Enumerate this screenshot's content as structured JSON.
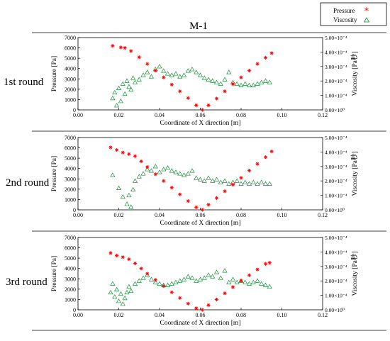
{
  "figure": {
    "title": "M-1",
    "legend": [
      {
        "label": "Pressure",
        "marker": "asterisk",
        "color": "#ff0000"
      },
      {
        "label": "Viscosity",
        "marker": "triangle-open",
        "color": "#1a8a3a"
      }
    ]
  },
  "chart_data": [
    {
      "type": "scatter",
      "row_label": "1st round",
      "xlabel": "Coordinate of X direction [m]",
      "ylabel": "Pressure [Pa]",
      "y2label": "Viscosity [Pa秒]",
      "xlim": [
        0,
        0.12
      ],
      "ylim": [
        0,
        7000
      ],
      "y2lim": [
        0,
        0.0005
      ],
      "xticks": [
        "0.00",
        "0.02",
        "0.04",
        "0.06",
        "0.08",
        "0.10",
        "0.12"
      ],
      "yticks": [
        "0",
        "1000",
        "2000",
        "3000",
        "4000",
        "5000",
        "6000",
        "7000"
      ],
      "y2ticks": [
        "0.00×10⁰",
        "1.00×10⁻⁴",
        "2.00×10⁻⁴",
        "3.00×10⁻⁴",
        "4.00×10⁻⁴",
        "5.00×10⁻⁴"
      ],
      "pressure": {
        "x": [
          0.017,
          0.021,
          0.023,
          0.026,
          0.03,
          0.034,
          0.038,
          0.042,
          0.046,
          0.05,
          0.054,
          0.058,
          0.061,
          0.064,
          0.068,
          0.072,
          0.076,
          0.08,
          0.084,
          0.088,
          0.092,
          0.095
        ],
        "y": [
          6200,
          6050,
          6000,
          5700,
          5100,
          4450,
          3800,
          3150,
          2450,
          1800,
          1150,
          450,
          0,
          450,
          1100,
          1800,
          2500,
          3150,
          3800,
          4450,
          5050,
          5500
        ]
      },
      "viscosity": {
        "x": [
          0.017,
          0.018,
          0.019,
          0.02,
          0.021,
          0.022,
          0.023,
          0.024,
          0.025,
          0.026,
          0.027,
          0.028,
          0.03,
          0.032,
          0.034,
          0.036,
          0.038,
          0.04,
          0.042,
          0.044,
          0.046,
          0.048,
          0.05,
          0.052,
          0.054,
          0.056,
          0.058,
          0.06,
          0.062,
          0.064,
          0.066,
          0.068,
          0.07,
          0.072,
          0.074,
          0.076,
          0.078,
          0.08,
          0.082,
          0.084,
          0.086,
          0.088,
          0.09,
          0.092,
          0.094
        ],
        "y": [
          8e-05,
          0.00012,
          3e-05,
          0.00015,
          6e-05,
          0.00018,
          0.00011,
          0.0002,
          0.00016,
          0.00014,
          0.00022,
          0.00019,
          0.00021,
          0.00024,
          0.00026,
          0.00023,
          0.00028,
          0.0003,
          0.00027,
          0.00025,
          0.00024,
          0.00025,
          0.00023,
          0.00024,
          0.00027,
          0.00028,
          0.00026,
          0.00024,
          0.00022,
          0.00021,
          0.0002,
          0.00019,
          0.00018,
          0.00021,
          0.00026,
          0.00019,
          0.00018,
          0.00017,
          0.00018,
          0.00017,
          0.00017,
          0.00018,
          0.00019,
          0.0002,
          0.00019
        ]
      }
    },
    {
      "type": "scatter",
      "row_label": "2nd round",
      "xlabel": "Coordinate of X direction [m]",
      "ylabel": "Pressure [Pa]",
      "y2label": "Viscosity [Pa秒]",
      "xlim": [
        0,
        0.12
      ],
      "ylim": [
        0,
        7000
      ],
      "y2lim": [
        0,
        0.0005
      ],
      "xticks": [
        "0.00",
        "0.02",
        "0.04",
        "0.06",
        "0.08",
        "0.10",
        "0.12"
      ],
      "yticks": [
        "0",
        "1000",
        "2000",
        "3000",
        "4000",
        "5000",
        "6000",
        "7000"
      ],
      "y2ticks": [
        "0.00×10⁰",
        "1.00×10⁻⁴",
        "2.00×10⁻⁴",
        "3.00×10⁻⁴",
        "4.00×10⁻⁴",
        "5.00×10⁻⁴"
      ],
      "pressure": {
        "x": [
          0.016,
          0.019,
          0.022,
          0.025,
          0.028,
          0.031,
          0.034,
          0.038,
          0.042,
          0.046,
          0.05,
          0.054,
          0.058,
          0.061,
          0.064,
          0.068,
          0.072,
          0.076,
          0.08,
          0.084,
          0.088,
          0.092,
          0.095
        ],
        "y": [
          6050,
          5800,
          5550,
          5400,
          5200,
          4700,
          4150,
          3450,
          2800,
          2150,
          1500,
          850,
          250,
          0,
          500,
          1150,
          1800,
          2450,
          3100,
          3800,
          4450,
          5100,
          5650
        ]
      },
      "viscosity": {
        "x": [
          0.017,
          0.02,
          0.022,
          0.024,
          0.025,
          0.026,
          0.027,
          0.028,
          0.03,
          0.032,
          0.034,
          0.036,
          0.038,
          0.04,
          0.042,
          0.044,
          0.046,
          0.048,
          0.05,
          0.052,
          0.054,
          0.056,
          0.058,
          0.06,
          0.062,
          0.064,
          0.066,
          0.068,
          0.07,
          0.072,
          0.074,
          0.076,
          0.078,
          0.08,
          0.082,
          0.084,
          0.086,
          0.088,
          0.09,
          0.092,
          0.094
        ],
        "y": [
          0.00024,
          0.00015,
          9e-05,
          4e-05,
          0.0001,
          2e-05,
          0.00014,
          0.0002,
          0.00023,
          0.00025,
          0.00028,
          0.00027,
          0.0003,
          0.00026,
          0.00028,
          0.00029,
          0.00027,
          0.00026,
          0.00025,
          0.00024,
          0.00025,
          0.00027,
          0.00022,
          0.00021,
          0.0002,
          0.00022,
          0.0002,
          0.00021,
          0.00019,
          0.0002,
          0.00018,
          0.00019,
          0.0002,
          0.00018,
          0.00019,
          0.00018,
          0.00019,
          0.00018,
          0.00019,
          0.00018,
          0.00018
        ]
      }
    },
    {
      "type": "scatter",
      "row_label": "3rd round",
      "xlabel": "Coordinate of X direction [m]",
      "ylabel": "Pressure [Pa]",
      "y2label": "Viscosity [Pa秒]",
      "xlim": [
        0,
        0.12
      ],
      "ylim": [
        0,
        7000
      ],
      "y2lim": [
        0,
        0.0005
      ],
      "xticks": [
        "0.00",
        "0.02",
        "0.04",
        "0.06",
        "0.08",
        "0.10",
        "0.12"
      ],
      "yticks": [
        "0",
        "1000",
        "2000",
        "3000",
        "4000",
        "5000",
        "6000",
        "7000"
      ],
      "y2ticks": [
        "0.00×10⁰",
        "1.00×10⁻⁴",
        "2.00×10⁻⁴",
        "3.00×10⁻⁴",
        "4.00×10⁻⁴",
        "5.00×10⁻⁴"
      ],
      "pressure": {
        "x": [
          0.016,
          0.019,
          0.022,
          0.025,
          0.028,
          0.031,
          0.034,
          0.038,
          0.042,
          0.046,
          0.05,
          0.054,
          0.058,
          0.061,
          0.064,
          0.068,
          0.072,
          0.076,
          0.08,
          0.084,
          0.088,
          0.092,
          0.094
        ],
        "y": [
          5500,
          5250,
          5100,
          4900,
          4500,
          4000,
          3500,
          2900,
          2300,
          1700,
          1150,
          600,
          150,
          0,
          450,
          1000,
          1600,
          2200,
          2800,
          3350,
          3900,
          4450,
          4550
        ]
      },
      "viscosity": {
        "x": [
          0.016,
          0.017,
          0.018,
          0.019,
          0.02,
          0.021,
          0.022,
          0.023,
          0.024,
          0.025,
          0.026,
          0.028,
          0.03,
          0.032,
          0.034,
          0.036,
          0.038,
          0.04,
          0.042,
          0.044,
          0.046,
          0.048,
          0.05,
          0.052,
          0.054,
          0.056,
          0.058,
          0.06,
          0.062,
          0.064,
          0.066,
          0.068,
          0.07,
          0.072,
          0.074,
          0.076,
          0.078,
          0.08,
          0.082,
          0.084,
          0.086,
          0.088,
          0.09,
          0.092,
          0.094
        ],
        "y": [
          0.00012,
          0.00018,
          9e-05,
          0.00014,
          6e-05,
          0.00011,
          4e-05,
          8e-05,
          0.00012,
          0.00016,
          0.00013,
          0.00018,
          0.0002,
          0.00022,
          0.00024,
          0.00021,
          0.00019,
          0.00018,
          0.00017,
          0.00017,
          0.00018,
          0.00019,
          0.0002,
          0.00021,
          0.00023,
          0.00022,
          0.0002,
          0.00021,
          0.00022,
          0.00024,
          0.00023,
          0.00026,
          0.00022,
          0.00027,
          0.00019,
          0.00021,
          0.00019,
          0.0002,
          0.00019,
          0.00018,
          0.00019,
          0.0002,
          0.00018,
          0.00017,
          0.00016
        ]
      }
    }
  ]
}
